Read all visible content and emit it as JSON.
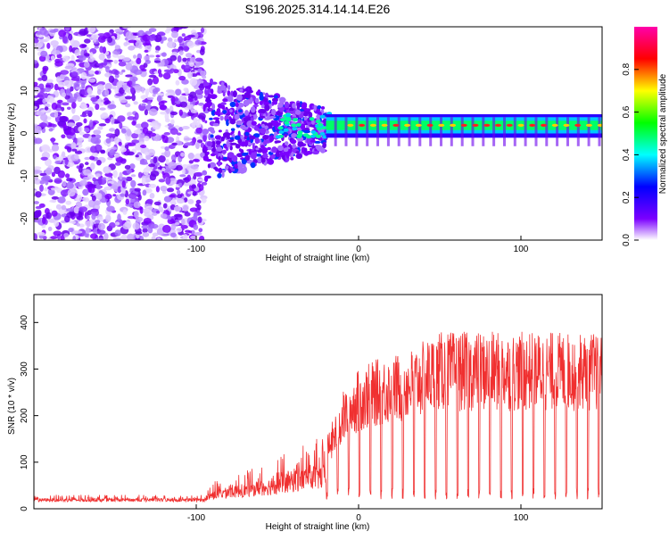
{
  "chart_data": [
    {
      "type": "heatmap",
      "title": "S196.2025.314.14.14.E26",
      "xlabel": "Height of straight line (km)",
      "ylabel": "Frequency (Hz)",
      "xlim": [
        -200,
        150
      ],
      "ylim": [
        -25,
        25
      ],
      "xticks": [
        -100,
        0,
        100
      ],
      "yticks": [
        -20,
        -10,
        0,
        10,
        20
      ],
      "colorbar": {
        "label": "Normalized spectral amplitude",
        "range": [
          0,
          1
        ],
        "ticks": [
          0.0,
          0.2,
          0.4,
          0.6,
          0.8
        ],
        "tick_labels": [
          "0.0",
          "0.2",
          "0.4",
          "0.6",
          "0.8"
        ],
        "colormap": [
          "#ffffff",
          "#7b00ff",
          "#0000ff",
          "#00ffff",
          "#00ff00",
          "#ffff00",
          "#ff0000",
          "#ff00aa"
        ]
      },
      "features": [
        {
          "description": "Diffuse purple noise",
          "x_range": [
            -200,
            -95
          ],
          "f_range": [
            -25,
            25
          ]
        },
        {
          "description": "Noise narrowing toward 0 Hz",
          "x_range": [
            -95,
            -20
          ],
          "f_range": [
            -10,
            12
          ]
        },
        {
          "description": "Coherent band near 2 Hz",
          "x_range": [
            -20,
            150
          ],
          "f_center": 2
        }
      ]
    },
    {
      "type": "line",
      "title": "",
      "xlabel": "Height of straight line (km)",
      "ylabel": "SNR (10 * v/v)",
      "xlim": [
        -200,
        150
      ],
      "ylim": [
        0,
        460
      ],
      "xticks": [
        -100,
        0,
        100
      ],
      "yticks": [
        0,
        100,
        200,
        300,
        400
      ],
      "color": "#f03030",
      "envelope": {
        "x": [
          -200,
          -95,
          -90,
          -70,
          -50,
          -30,
          -20,
          -10,
          0,
          10,
          20,
          30,
          50,
          60,
          80,
          100,
          120,
          150
        ],
        "baseline": [
          15,
          15,
          20,
          25,
          30,
          40,
          40,
          30,
          30,
          30,
          30,
          30,
          30,
          30,
          30,
          30,
          30,
          30
        ],
        "peak": [
          30,
          30,
          60,
          80,
          110,
          150,
          150,
          250,
          300,
          320,
          330,
          340,
          380,
          380,
          380,
          380,
          380,
          380
        ]
      }
    }
  ]
}
